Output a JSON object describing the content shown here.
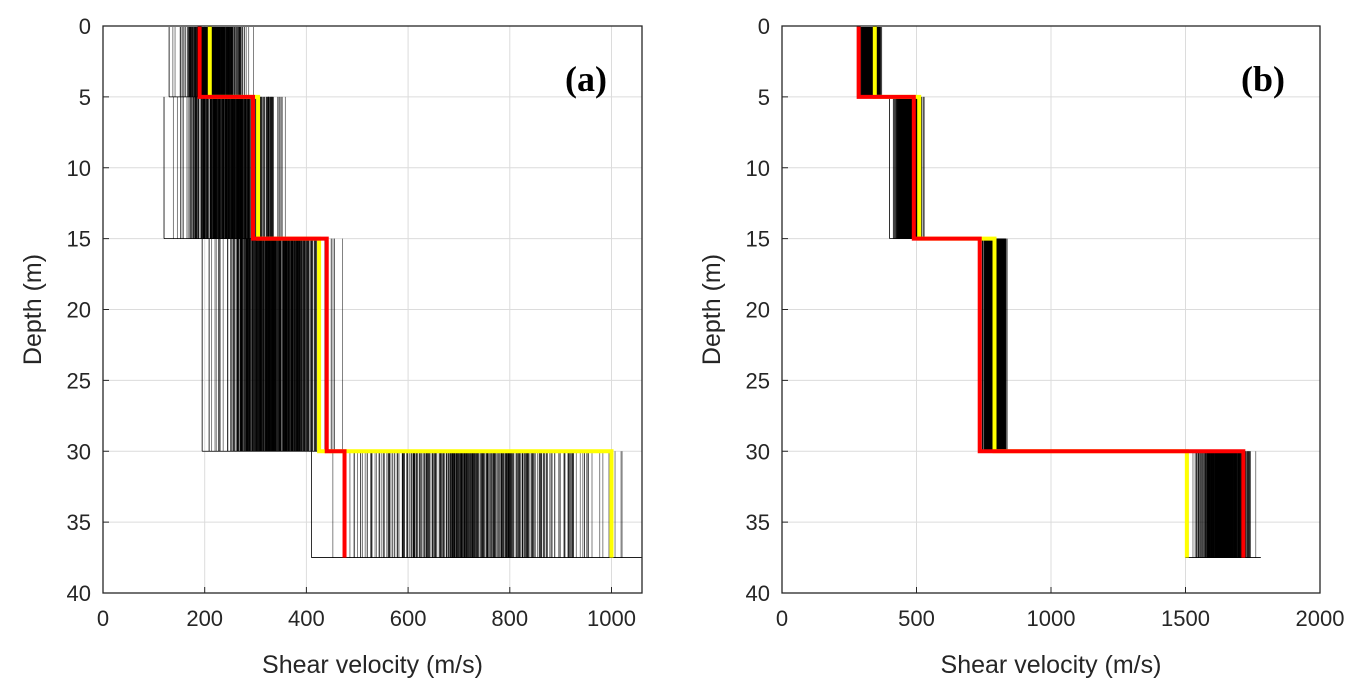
{
  "colors": {
    "ensemble": "#000000",
    "yellow": "#ffff00",
    "red": "#ff0000",
    "grid": "#dcdcdc",
    "axis": "#262626"
  },
  "chart_data": [
    {
      "type": "line",
      "panel_label": "(a)",
      "xlabel": "Shear velocity (m/s)",
      "ylabel": "Depth (m)",
      "xlim": [
        0,
        1060
      ],
      "ylim": [
        0,
        40
      ],
      "xticks": [
        0,
        200,
        400,
        600,
        800,
        1000
      ],
      "yticks": [
        0,
        5,
        10,
        15,
        20,
        25,
        30,
        35,
        40
      ],
      "layer_depths": [
        0,
        5,
        15,
        30,
        37.5
      ],
      "ensemble_ranges": [
        [
          130,
          300
        ],
        [
          120,
          380
        ],
        [
          195,
          475
        ],
        [
          410,
          1060
        ]
      ],
      "yellow_profile": [
        210,
        305,
        425,
        1000
      ],
      "red_profile": [
        190,
        295,
        440,
        475
      ],
      "grid": true
    },
    {
      "type": "line",
      "panel_label": "(b)",
      "xlabel": "Shear velocity (m/s)",
      "ylabel": "Depth (m)",
      "xlim": [
        0,
        2000
      ],
      "ylim": [
        0,
        40
      ],
      "xticks": [
        0,
        500,
        1000,
        1500,
        2000
      ],
      "yticks": [
        0,
        5,
        10,
        15,
        20,
        25,
        30,
        35,
        40
      ],
      "layer_depths": [
        0,
        5,
        15,
        30,
        37.5
      ],
      "ensemble_ranges": [
        [
          280,
          380
        ],
        [
          400,
          540
        ],
        [
          730,
          850
        ],
        [
          1500,
          1780
        ]
      ],
      "yellow_profile": [
        345,
        510,
        790,
        1505
      ],
      "red_profile": [
        285,
        490,
        735,
        1715
      ],
      "grid": true
    }
  ]
}
